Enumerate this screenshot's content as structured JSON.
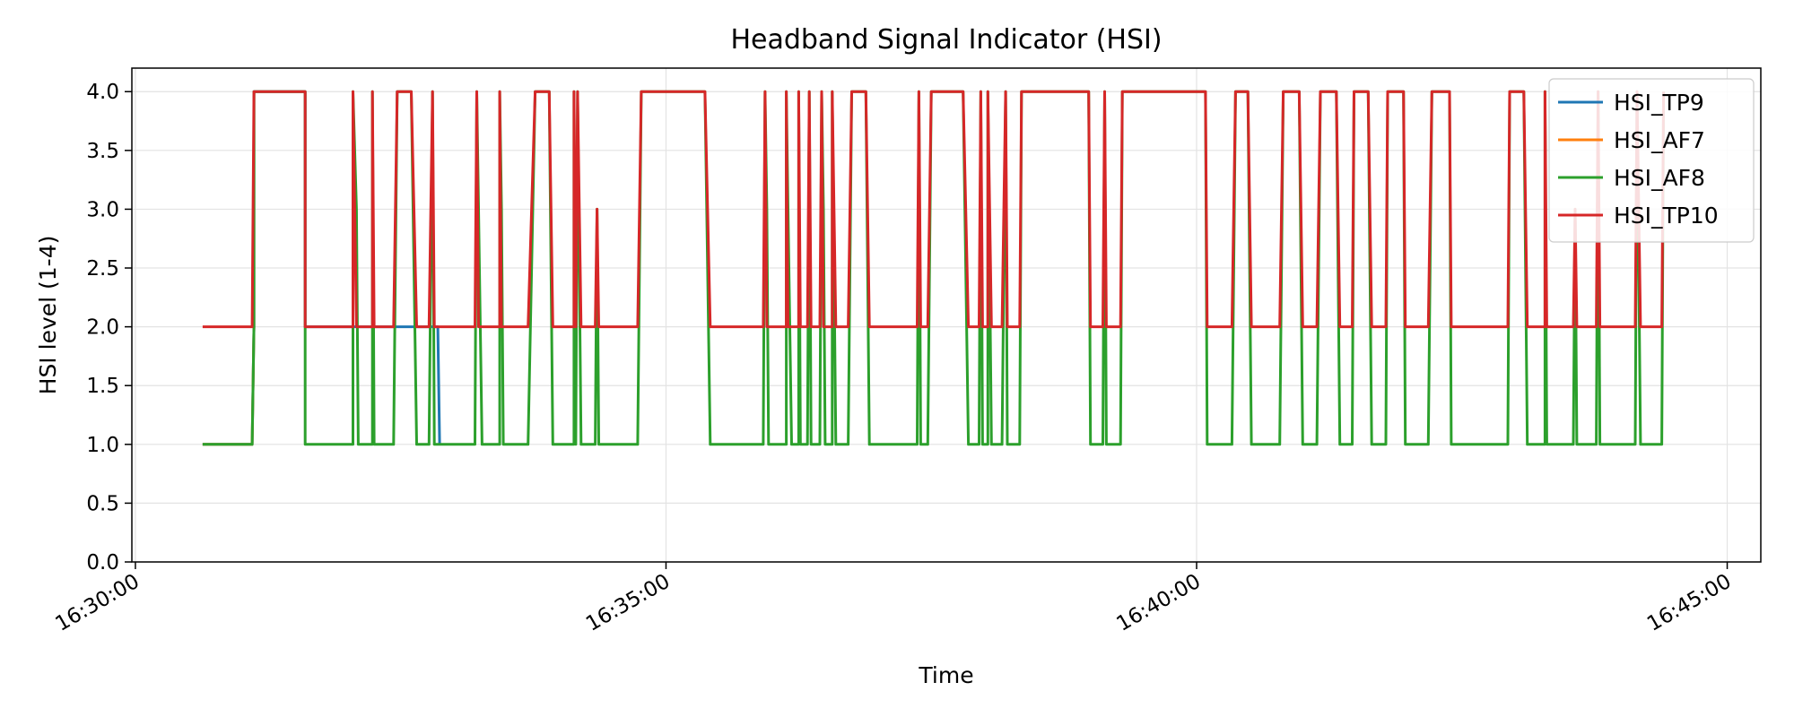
{
  "chart_data": {
    "type": "line",
    "title": "Headband Signal Indicator (HSI)",
    "xlabel": "Time",
    "ylabel": "HSI level (1-4)",
    "x_ticks": [
      "16:30:00",
      "16:35:00",
      "16:40:00",
      "16:45:00"
    ],
    "y_ticks": [
      "0.0",
      "0.5",
      "1.0",
      "1.5",
      "2.0",
      "2.5",
      "3.0",
      "3.5",
      "4.0"
    ],
    "xlim": [
      "16:29:58",
      "16:45:19"
    ],
    "ylim": [
      0,
      4.2
    ],
    "grid": true,
    "legend_position": "top-right",
    "colors": {
      "HSI_TP9": "#1f77b4",
      "HSI_AF7": "#ff7f0e",
      "HSI_AF8": "#2ca02c",
      "HSI_TP10": "#d62728"
    },
    "series": [
      {
        "name": "HSI_TP9",
        "points": [
          [
            "16:30:38",
            1
          ],
          [
            "16:31:06",
            1
          ],
          [
            "16:31:07",
            2
          ],
          [
            "16:31:07",
            4
          ],
          [
            "16:31:36",
            4
          ],
          [
            "16:31:36",
            2
          ],
          [
            "16:32:51",
            2
          ],
          [
            "16:32:52",
            1
          ]
        ]
      },
      {
        "name": "HSI_AF7",
        "points": [
          [
            "16:30:38",
            1
          ],
          [
            "16:31:06",
            1
          ],
          [
            "16:31:07",
            2
          ],
          [
            "16:31:07",
            4
          ]
        ]
      },
      {
        "name": "HSI_AF8",
        "points": [
          [
            "16:30:38",
            1
          ],
          [
            "16:31:06",
            1
          ],
          [
            "16:31:07",
            2
          ],
          [
            "16:31:07",
            4
          ],
          [
            "16:31:36",
            4
          ],
          [
            "16:31:36",
            2
          ],
          [
            "16:31:36",
            1
          ],
          [
            "16:32:03",
            1
          ],
          [
            "16:32:03",
            4
          ],
          [
            "16:32:05",
            3
          ],
          [
            "16:32:06",
            1
          ],
          [
            "16:32:14",
            1
          ],
          [
            "16:32:14",
            4
          ],
          [
            "16:32:15",
            1
          ],
          [
            "16:32:26",
            1
          ],
          [
            "16:32:28",
            4
          ],
          [
            "16:32:36",
            4
          ],
          [
            "16:32:39",
            1
          ],
          [
            "16:32:46",
            1
          ],
          [
            "16:32:48",
            4
          ],
          [
            "16:32:49",
            1
          ],
          [
            "16:33:12",
            1
          ],
          [
            "16:33:13",
            4
          ],
          [
            "16:33:14",
            3
          ],
          [
            "16:33:16",
            1
          ],
          [
            "16:33:26",
            1
          ],
          [
            "16:33:26",
            4
          ],
          [
            "16:33:27",
            3
          ],
          [
            "16:33:28",
            1
          ],
          [
            "16:33:42",
            1
          ],
          [
            "16:33:46",
            4
          ],
          [
            "16:33:54",
            4
          ],
          [
            "16:33:56",
            1
          ],
          [
            "16:34:08",
            1
          ],
          [
            "16:34:08",
            4
          ],
          [
            "16:34:09",
            1
          ],
          [
            "16:34:10",
            4
          ],
          [
            "16:34:12",
            1
          ],
          [
            "16:34:20",
            1
          ],
          [
            "16:34:21",
            3
          ],
          [
            "16:34:22",
            1
          ],
          [
            "16:34:44",
            1
          ],
          [
            "16:34:46",
            4
          ],
          [
            "16:35:22",
            4
          ],
          [
            "16:35:25",
            1
          ],
          [
            "16:35:55",
            1
          ],
          [
            "16:35:56",
            4
          ],
          [
            "16:35:57",
            3
          ],
          [
            "16:35:58",
            1
          ],
          [
            "16:36:08",
            1
          ],
          [
            "16:36:08",
            4
          ],
          [
            "16:36:09",
            3
          ],
          [
            "16:36:11",
            1
          ],
          [
            "16:36:15",
            1
          ],
          [
            "16:36:15",
            4
          ],
          [
            "16:36:16",
            1
          ],
          [
            "16:36:20",
            1
          ],
          [
            "16:36:21",
            4
          ],
          [
            "16:36:22",
            1
          ],
          [
            "16:36:27",
            1
          ],
          [
            "16:36:28",
            4
          ],
          [
            "16:36:29",
            3
          ],
          [
            "16:36:30",
            1
          ],
          [
            "16:36:34",
            1
          ],
          [
            "16:36:34",
            4
          ],
          [
            "16:36:36",
            1
          ],
          [
            "16:36:43",
            1
          ],
          [
            "16:36:45",
            4
          ],
          [
            "16:36:53",
            4
          ],
          [
            "16:36:55",
            1
          ],
          [
            "16:37:22",
            1
          ],
          [
            "16:37:23",
            4
          ],
          [
            "16:37:24",
            1
          ],
          [
            "16:37:28",
            1
          ],
          [
            "16:37:30",
            4
          ],
          [
            "16:37:48",
            4
          ],
          [
            "16:37:51",
            1
          ],
          [
            "16:37:57",
            1
          ],
          [
            "16:37:58",
            4
          ],
          [
            "16:37:59",
            1
          ],
          [
            "16:38:02",
            1
          ],
          [
            "16:38:02",
            4
          ],
          [
            "16:38:04",
            1
          ],
          [
            "16:38:10",
            1
          ],
          [
            "16:38:12",
            4
          ],
          [
            "16:38:13",
            1
          ],
          [
            "16:38:20",
            1
          ],
          [
            "16:38:21",
            4
          ],
          [
            "16:38:59",
            4
          ],
          [
            "16:39:00",
            1
          ],
          [
            "16:39:07",
            1
          ],
          [
            "16:39:08",
            4
          ],
          [
            "16:39:09",
            1
          ],
          [
            "16:39:17",
            1
          ],
          [
            "16:39:18",
            4
          ],
          [
            "16:40:05",
            4
          ],
          [
            "16:40:06",
            1
          ],
          [
            "16:40:20",
            1
          ],
          [
            "16:40:22",
            4
          ],
          [
            "16:40:29",
            4
          ],
          [
            "16:40:31",
            1
          ],
          [
            "16:40:47",
            1
          ],
          [
            "16:40:49",
            4
          ],
          [
            "16:40:58",
            4
          ],
          [
            "16:41:00",
            1
          ],
          [
            "16:41:08",
            1
          ],
          [
            "16:41:10",
            4
          ],
          [
            "16:41:19",
            4
          ],
          [
            "16:41:21",
            1
          ],
          [
            "16:41:28",
            1
          ],
          [
            "16:41:29",
            4
          ],
          [
            "16:41:37",
            4
          ],
          [
            "16:41:39",
            1
          ],
          [
            "16:41:47",
            1
          ],
          [
            "16:41:48",
            4
          ],
          [
            "16:41:57",
            4
          ],
          [
            "16:41:58",
            1
          ],
          [
            "16:42:11",
            1
          ],
          [
            "16:42:13",
            4
          ],
          [
            "16:42:23",
            4
          ],
          [
            "16:42:24",
            1
          ],
          [
            "16:42:56",
            1
          ],
          [
            "16:42:57",
            4
          ],
          [
            "16:43:05",
            4
          ],
          [
            "16:43:07",
            1
          ],
          [
            "16:43:17",
            1
          ],
          [
            "16:43:17",
            4
          ],
          [
            "16:43:18",
            1
          ],
          [
            "16:43:33",
            1
          ],
          [
            "16:43:34",
            3
          ],
          [
            "16:43:35",
            1
          ],
          [
            "16:43:46",
            1
          ],
          [
            "16:43:47",
            4
          ],
          [
            "16:43:48",
            1
          ],
          [
            "16:44:08",
            1
          ],
          [
            "16:44:09",
            4
          ],
          [
            "16:44:11",
            1
          ],
          [
            "16:44:23",
            1
          ],
          [
            "16:44:24",
            4
          ]
        ]
      },
      {
        "name": "HSI_TP10",
        "points": [
          [
            "16:30:38",
            2
          ],
          [
            "16:31:06",
            2
          ],
          [
            "16:31:07",
            4
          ],
          [
            "16:31:36",
            4
          ],
          [
            "16:31:36",
            2
          ],
          [
            "16:32:03",
            2
          ],
          [
            "16:32:03",
            4
          ],
          [
            "16:32:05",
            2
          ],
          [
            "16:32:14",
            2
          ],
          [
            "16:32:14",
            4
          ],
          [
            "16:32:15",
            2
          ],
          [
            "16:32:26",
            2
          ],
          [
            "16:32:28",
            4
          ],
          [
            "16:32:36",
            4
          ],
          [
            "16:32:39",
            2
          ],
          [
            "16:32:46",
            2
          ],
          [
            "16:32:48",
            4
          ],
          [
            "16:32:49",
            2
          ],
          [
            "16:33:12",
            2
          ],
          [
            "16:33:13",
            4
          ],
          [
            "16:33:14",
            2
          ],
          [
            "16:33:26",
            2
          ],
          [
            "16:33:26",
            4
          ],
          [
            "16:33:27",
            2
          ],
          [
            "16:33:42",
            2
          ],
          [
            "16:33:46",
            4
          ],
          [
            "16:33:54",
            4
          ],
          [
            "16:33:56",
            2
          ],
          [
            "16:34:08",
            2
          ],
          [
            "16:34:08",
            4
          ],
          [
            "16:34:09",
            2
          ],
          [
            "16:34:10",
            4
          ],
          [
            "16:34:12",
            2
          ],
          [
            "16:34:20",
            2
          ],
          [
            "16:34:21",
            3
          ],
          [
            "16:34:22",
            2
          ],
          [
            "16:34:44",
            2
          ],
          [
            "16:34:46",
            4
          ],
          [
            "16:35:22",
            4
          ],
          [
            "16:35:25",
            2
          ],
          [
            "16:35:55",
            2
          ],
          [
            "16:35:56",
            4
          ],
          [
            "16:35:57",
            2
          ],
          [
            "16:36:08",
            2
          ],
          [
            "16:36:08",
            4
          ],
          [
            "16:36:09",
            2
          ],
          [
            "16:36:15",
            2
          ],
          [
            "16:36:15",
            4
          ],
          [
            "16:36:16",
            2
          ],
          [
            "16:36:20",
            2
          ],
          [
            "16:36:21",
            4
          ],
          [
            "16:36:22",
            2
          ],
          [
            "16:36:27",
            2
          ],
          [
            "16:36:28",
            4
          ],
          [
            "16:36:29",
            2
          ],
          [
            "16:36:34",
            2
          ],
          [
            "16:36:34",
            4
          ],
          [
            "16:36:36",
            2
          ],
          [
            "16:36:43",
            2
          ],
          [
            "16:36:45",
            4
          ],
          [
            "16:36:53",
            4
          ],
          [
            "16:36:55",
            2
          ],
          [
            "16:37:22",
            2
          ],
          [
            "16:37:23",
            4
          ],
          [
            "16:37:24",
            2
          ],
          [
            "16:37:28",
            2
          ],
          [
            "16:37:30",
            4
          ],
          [
            "16:37:48",
            4
          ],
          [
            "16:37:51",
            2
          ],
          [
            "16:37:57",
            2
          ],
          [
            "16:37:58",
            4
          ],
          [
            "16:37:59",
            2
          ],
          [
            "16:38:02",
            2
          ],
          [
            "16:38:02",
            4
          ],
          [
            "16:38:04",
            2
          ],
          [
            "16:38:10",
            2
          ],
          [
            "16:38:12",
            4
          ],
          [
            "16:38:13",
            2
          ],
          [
            "16:38:20",
            2
          ],
          [
            "16:38:21",
            4
          ],
          [
            "16:38:59",
            4
          ],
          [
            "16:39:00",
            2
          ],
          [
            "16:39:07",
            2
          ],
          [
            "16:39:08",
            4
          ],
          [
            "16:39:09",
            2
          ],
          [
            "16:39:17",
            2
          ],
          [
            "16:39:18",
            4
          ],
          [
            "16:40:05",
            4
          ],
          [
            "16:40:06",
            2
          ],
          [
            "16:40:20",
            2
          ],
          [
            "16:40:22",
            4
          ],
          [
            "16:40:29",
            4
          ],
          [
            "16:40:31",
            2
          ],
          [
            "16:40:47",
            2
          ],
          [
            "16:40:49",
            4
          ],
          [
            "16:40:58",
            4
          ],
          [
            "16:41:00",
            2
          ],
          [
            "16:41:08",
            2
          ],
          [
            "16:41:10",
            4
          ],
          [
            "16:41:19",
            4
          ],
          [
            "16:41:21",
            2
          ],
          [
            "16:41:28",
            2
          ],
          [
            "16:41:29",
            4
          ],
          [
            "16:41:37",
            4
          ],
          [
            "16:41:39",
            2
          ],
          [
            "16:41:47",
            2
          ],
          [
            "16:41:48",
            4
          ],
          [
            "16:41:57",
            4
          ],
          [
            "16:41:58",
            2
          ],
          [
            "16:42:11",
            2
          ],
          [
            "16:42:13",
            4
          ],
          [
            "16:42:23",
            4
          ],
          [
            "16:42:24",
            2
          ],
          [
            "16:42:56",
            2
          ],
          [
            "16:42:57",
            4
          ],
          [
            "16:43:05",
            4
          ],
          [
            "16:43:07",
            2
          ],
          [
            "16:43:17",
            2
          ],
          [
            "16:43:17",
            4
          ],
          [
            "16:43:18",
            2
          ],
          [
            "16:43:33",
            2
          ],
          [
            "16:43:34",
            3
          ],
          [
            "16:43:35",
            2
          ],
          [
            "16:43:46",
            2
          ],
          [
            "16:43:47",
            4
          ],
          [
            "16:43:48",
            2
          ],
          [
            "16:44:08",
            2
          ],
          [
            "16:44:09",
            4
          ],
          [
            "16:44:11",
            2
          ],
          [
            "16:44:23",
            2
          ],
          [
            "16:44:24",
            4
          ]
        ]
      }
    ]
  }
}
